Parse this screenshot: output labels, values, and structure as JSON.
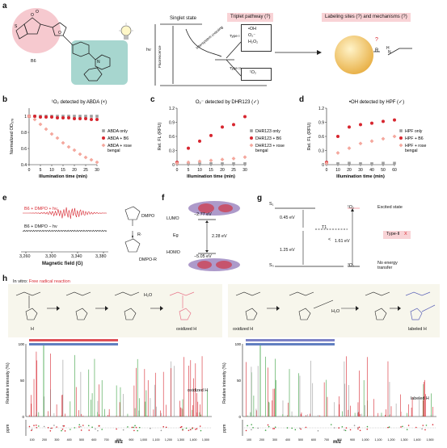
{
  "panels": {
    "a": "a",
    "b": "b",
    "c": "c",
    "d": "d",
    "e": "e",
    "f": "f",
    "g": "g",
    "h": "h"
  },
  "panel_a": {
    "molecule": "B6",
    "hv": "hv",
    "singlet_state": "Singlet state",
    "fluorescence": "Fluorescence",
    "isc": "Intersystem crossing",
    "type1": "Type I",
    "type2": "Type II",
    "type1_products": [
      "•OH",
      "O₂⁻",
      "H₂O₂"
    ],
    "type2_product": "¹O₂",
    "triplet_header": "Triplet pathway (?)",
    "labeling_header": "Labeling sites (?) and mechanisms (?)",
    "q_mark": "?",
    "particle_r": "R",
    "particle_h": "H",
    "particle_n": "N",
    "colors": {
      "pink": "#f6c9cf",
      "teal": "#a7d6cf",
      "header_bg": "#f9d3d6",
      "red": "#d7262f"
    }
  },
  "panel_e": {
    "trace1": "B6 + DMPO + hv",
    "trace2": "B6 + DMPO − hv",
    "xlabel": "Magnetic field (G)",
    "ticks": [
      "3,260",
      "3,300",
      "3,340",
      "3,380"
    ],
    "dmpo": "DMPO",
    "radical": "R·",
    "dmpo_r": "DMPO-R"
  },
  "panel_f": {
    "lumo": "LUMO",
    "homo": "HOMO",
    "eg": "Eg",
    "lumo_val": "−2.77 eV",
    "homo_val": "−5.05 eV",
    "gap": "2.28 eV"
  },
  "panel_g": {
    "s1": "S₁",
    "s0": "S₀",
    "t1": "T1",
    "o2_1": "¹O₂",
    "o2_3": "³O₂",
    "e1": "0.45 eV",
    "e2": "1.25 eV",
    "e3": "1.61 eV",
    "lt": "<",
    "excited": "Excited state",
    "type2": "Type-II",
    "x": "X",
    "no_transfer": "No energy transfer"
  },
  "panel_h": {
    "invitro": "In vitro:",
    "reaction": "Free radical reaction",
    "h2o": "H₂O",
    "oxidized": "oxidized H",
    "labeled": "labeled H",
    "h": "H",
    "ylabel_ms": "Relative intensity (%)",
    "ylabel_ppm": "ppm",
    "xlabel": "m/z",
    "xticks": [
      "100",
      "200",
      "300",
      "400",
      "500",
      "600",
      "700",
      "800",
      "900",
      "1,000",
      "1,100",
      "1,200",
      "1,300",
      "1,400",
      "1,500"
    ],
    "yticks_left": [
      "0",
      "50",
      "100"
    ],
    "ppm_ticks": [
      "10",
      "0",
      "−10"
    ],
    "oxidized_label": "oxidized H",
    "labeled_label": "labeled H"
  },
  "chart_data": [
    {
      "type": "scatter",
      "panel": "b",
      "title": "¹O₂ detected by ABDA (×)",
      "xlabel": "Illumination time (min)",
      "ylabel": "Normalized OD₃₇₈",
      "xlim": [
        0,
        30
      ],
      "ylim": [
        0.4,
        1.1
      ],
      "x_ticks": [
        0,
        5,
        10,
        15,
        20,
        25,
        30
      ],
      "y_ticks": [
        0.4,
        0.6,
        0.8,
        1.0
      ],
      "legend": "right",
      "series": [
        {
          "name": "ABDA only",
          "color": "#9e9e9e",
          "x": [
            0,
            2.5,
            5,
            7.5,
            10,
            12.5,
            15,
            17.5,
            20,
            22.5,
            25,
            27.5,
            30
          ],
          "y": [
            1.0,
            1.0,
            1.0,
            1.0,
            1.0,
            1.0,
            1.0,
            1.0,
            1.0,
            1.0,
            1.0,
            1.0,
            1.0
          ]
        },
        {
          "name": "ABDA + B6",
          "color": "#d7262f",
          "x": [
            0,
            2.5,
            5,
            7.5,
            10,
            12.5,
            15,
            17.5,
            20,
            22.5,
            25,
            27.5,
            30
          ],
          "y": [
            1.0,
            1.0,
            0.99,
            0.99,
            0.99,
            0.98,
            0.98,
            0.98,
            0.97,
            0.97,
            0.97,
            0.96,
            0.96
          ]
        },
        {
          "name": "ABDA + rose bengal",
          "color": "#f4a79d",
          "x": [
            0,
            2.5,
            5,
            7.5,
            10,
            12.5,
            15,
            17.5,
            20,
            22.5,
            25,
            27.5,
            30
          ],
          "y": [
            1.0,
            0.96,
            0.9,
            0.84,
            0.78,
            0.73,
            0.67,
            0.62,
            0.58,
            0.53,
            0.49,
            0.46,
            0.43
          ]
        }
      ]
    },
    {
      "type": "scatter",
      "panel": "c",
      "title": "O₂⁻ detected by DHR123 (✓)",
      "xlabel": "Illumination time (min)",
      "ylabel": "Rel. FL (RFU)",
      "xlim": [
        0,
        30
      ],
      "ylim": [
        0,
        1.2
      ],
      "x_ticks": [
        0,
        5,
        10,
        15,
        20,
        25,
        30
      ],
      "y_ticks": [
        0,
        0.3,
        0.6,
        0.9,
        1.2
      ],
      "legend": "right",
      "series": [
        {
          "name": "DHR123 only",
          "color": "#9e9e9e",
          "x": [
            0,
            5,
            10,
            15,
            20,
            25,
            30
          ],
          "y": [
            0.02,
            0.02,
            0.02,
            0.02,
            0.02,
            0.02,
            0.02
          ]
        },
        {
          "name": "DHR123 + B6",
          "color": "#d7262f",
          "x": [
            0,
            5,
            10,
            15,
            20,
            25,
            30
          ],
          "y": [
            0.05,
            0.35,
            0.5,
            0.62,
            0.8,
            0.85,
            1.02
          ]
        },
        {
          "name": "DHR123 + rose bengal",
          "color": "#f4a79d",
          "x": [
            0,
            5,
            10,
            15,
            20,
            25,
            30
          ],
          "y": [
            0.03,
            0.05,
            0.07,
            0.09,
            0.11,
            0.13,
            0.16
          ]
        }
      ]
    },
    {
      "type": "scatter",
      "panel": "d",
      "title": "•OH detected by HPF (✓)",
      "xlabel": "Illumination time (min)",
      "ylabel": "Rel. FL (RFU)",
      "xlim": [
        0,
        60
      ],
      "ylim": [
        0,
        1.2
      ],
      "x_ticks": [
        0,
        10,
        20,
        30,
        40,
        50,
        60
      ],
      "y_ticks": [
        0,
        0.3,
        0.6,
        0.9,
        1.2
      ],
      "legend": "right",
      "series": [
        {
          "name": "HPF only",
          "color": "#9e9e9e",
          "x": [
            0,
            10,
            20,
            30,
            40,
            50,
            60
          ],
          "y": [
            0.02,
            0.02,
            0.03,
            0.02,
            0.02,
            0.03,
            0.03
          ]
        },
        {
          "name": "HPF + B6",
          "color": "#d7262f",
          "x": [
            0,
            10,
            20,
            30,
            40,
            50,
            60
          ],
          "y": [
            0.05,
            0.6,
            0.8,
            0.85,
            0.88,
            0.92,
            0.95
          ]
        },
        {
          "name": "HPF + rose bengal",
          "color": "#f4a79d",
          "x": [
            0,
            10,
            20,
            30,
            40,
            50,
            60
          ],
          "y": [
            0.03,
            0.25,
            0.35,
            0.45,
            0.5,
            0.55,
            0.6
          ]
        }
      ]
    }
  ]
}
